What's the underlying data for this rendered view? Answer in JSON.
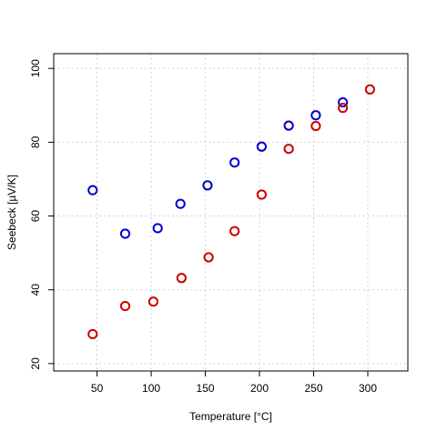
{
  "chart_data": {
    "type": "scatter",
    "xlabel": "Temperature [°C]",
    "ylabel": "Seebeck [µV/K]",
    "xlim": [
      10,
      337
    ],
    "ylim": [
      18,
      104
    ],
    "xticks": [
      50,
      100,
      150,
      200,
      250,
      300
    ],
    "yticks": [
      20,
      40,
      60,
      80,
      100
    ],
    "grid": true,
    "grid_color": "#d3d3d3",
    "marker": "open-circle",
    "series": [
      {
        "color": "#0000cc",
        "points": [
          {
            "x": 46,
            "y": 67.0
          },
          {
            "x": 76,
            "y": 55.2
          },
          {
            "x": 106,
            "y": 56.7
          },
          {
            "x": 127,
            "y": 63.3
          },
          {
            "x": 152,
            "y": 68.3
          },
          {
            "x": 177,
            "y": 74.5
          },
          {
            "x": 202,
            "y": 78.8
          },
          {
            "x": 227,
            "y": 84.5
          },
          {
            "x": 252,
            "y": 87.3
          },
          {
            "x": 277,
            "y": 90.8
          }
        ]
      },
      {
        "color": "#cc0000",
        "points": [
          {
            "x": 46,
            "y": 28.0
          },
          {
            "x": 76,
            "y": 35.6
          },
          {
            "x": 102,
            "y": 36.8
          },
          {
            "x": 128,
            "y": 43.2
          },
          {
            "x": 153,
            "y": 48.8
          },
          {
            "x": 177,
            "y": 55.9
          },
          {
            "x": 202,
            "y": 65.8
          },
          {
            "x": 227,
            "y": 78.2
          },
          {
            "x": 252,
            "y": 84.4
          },
          {
            "x": 277,
            "y": 89.3
          },
          {
            "x": 302,
            "y": 94.3
          }
        ]
      }
    ]
  }
}
